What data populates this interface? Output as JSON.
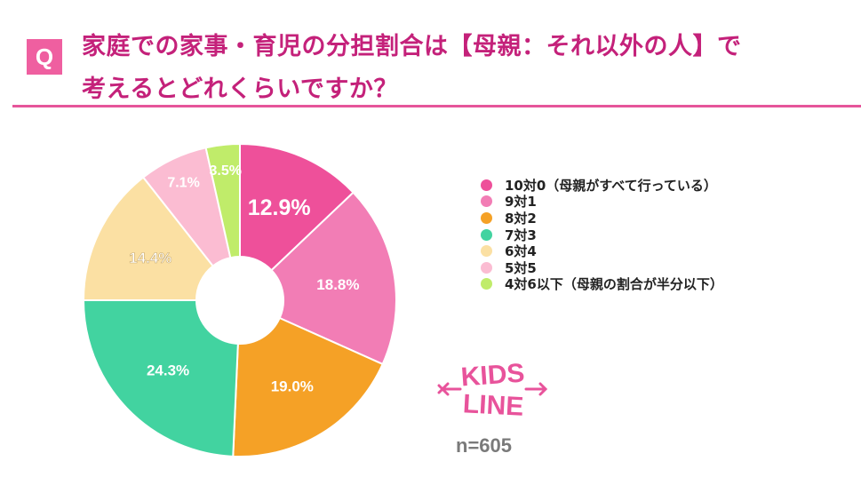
{
  "question": {
    "badge": "Q",
    "line1": "家庭での家事・育児の分担割合は【母親：それ以外の人】で",
    "line2": "考えるとどれくらいですか？"
  },
  "chart_data": {
    "type": "pie",
    "donut": true,
    "categories": [
      "10対0（母親がすべて行っている）",
      "9対1",
      "8対2",
      "7対3",
      "6対4",
      "5対5",
      "4対6以下（母親の割合が半分以下）"
    ],
    "values": [
      12.9,
      18.8,
      19.0,
      24.3,
      14.4,
      7.1,
      3.5
    ],
    "labels": [
      "12.9%",
      "18.8%",
      "19.0%",
      "24.3%",
      "14.4%",
      "7.1%",
      "3.5%"
    ],
    "colors": [
      "#ee509a",
      "#f27db5",
      "#f5a126",
      "#42d3a0",
      "#fbe0a3",
      "#fbbcd2",
      "#c0ec6a"
    ],
    "legend_position": "right"
  },
  "logo": {
    "line1": "KIDS",
    "line2": "LINE"
  },
  "sample_size": "n=605"
}
